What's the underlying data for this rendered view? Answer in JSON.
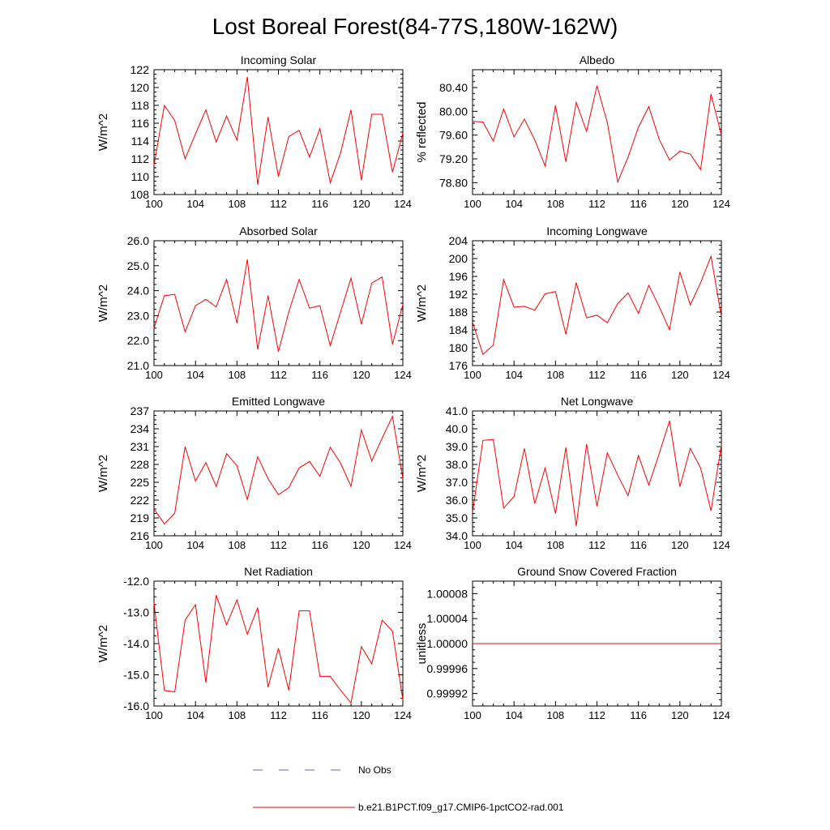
{
  "figure": {
    "title": "Lost Boreal Forest(84-77S,180W-162W)"
  },
  "legend": {
    "position": "bottom",
    "entries": [
      {
        "label": "No Obs",
        "color": "#6666cc",
        "style": "dashed"
      },
      {
        "label": "b.e21.B1PCT.f09_g17.CMIP6-1pctCO2-rad.001",
        "color": "#ff0000",
        "style": "solid"
      }
    ]
  },
  "chart_data": [
    {
      "type": "line",
      "title": "Incoming Solar",
      "ylabel": "W/m^2",
      "xlim": [
        100,
        124
      ],
      "ylim": [
        108,
        122
      ],
      "xticks": [
        "100",
        "104",
        "108",
        "112",
        "116",
        "120",
        "124"
      ],
      "yticks": [
        {
          "v": 108,
          "label": "108"
        },
        {
          "v": 110,
          "label": "110"
        },
        {
          "v": 112,
          "label": "112"
        },
        {
          "v": 114,
          "label": "114"
        },
        {
          "v": 116,
          "label": "116"
        },
        {
          "v": 118,
          "label": "118"
        },
        {
          "v": 120,
          "label": "120"
        },
        {
          "v": 122,
          "label": "122"
        }
      ],
      "series": [
        {
          "color": "#ff0000",
          "x": [
            100,
            101,
            102,
            103,
            104,
            105,
            106,
            107,
            108,
            109,
            110,
            111,
            112,
            113,
            114,
            115,
            116,
            117,
            118,
            119,
            120,
            121,
            122,
            123,
            124
          ],
          "values": [
            111.3,
            118.0,
            116.3,
            112.0,
            114.8,
            117.5,
            113.9,
            116.8,
            114.1,
            121.2,
            109.1,
            116.7,
            110.0,
            114.5,
            115.2,
            112.2,
            115.4,
            109.3,
            112.7,
            117.5,
            109.6,
            117.0,
            117.0,
            110.5,
            114.9
          ]
        }
      ]
    },
    {
      "type": "line",
      "title": "Albedo",
      "ylabel": "% reflected",
      "xlim": [
        100,
        124
      ],
      "ylim": [
        78.6,
        80.7
      ],
      "xticks": [
        "100",
        "104",
        "108",
        "112",
        "116",
        "120",
        "124"
      ],
      "yticks": [
        {
          "v": 78.8,
          "label": "78.80"
        },
        {
          "v": 79.2,
          "label": "79.20"
        },
        {
          "v": 79.6,
          "label": "79.60"
        },
        {
          "v": 80.0,
          "label": "80.00"
        },
        {
          "v": 80.4,
          "label": "80.40"
        }
      ],
      "series": [
        {
          "color": "#ff0000",
          "x": [
            100,
            101,
            102,
            103,
            104,
            105,
            106,
            107,
            108,
            109,
            110,
            111,
            112,
            113,
            114,
            115,
            116,
            117,
            118,
            119,
            120,
            121,
            122,
            123,
            124
          ],
          "values": [
            79.83,
            79.82,
            79.5,
            80.04,
            79.57,
            79.87,
            79.52,
            79.08,
            80.1,
            79.15,
            80.15,
            79.66,
            80.43,
            79.81,
            78.81,
            79.23,
            79.73,
            80.08,
            79.53,
            79.18,
            79.33,
            79.28,
            79.02,
            80.29,
            79.6
          ]
        }
      ]
    },
    {
      "type": "line",
      "title": "Absorbed Solar",
      "ylabel": "W/m^2",
      "xlim": [
        100,
        124
      ],
      "ylim": [
        21,
        26
      ],
      "xticks": [
        "100",
        "104",
        "108",
        "112",
        "116",
        "120",
        "124"
      ],
      "yticks": [
        {
          "v": 21,
          "label": "21.0"
        },
        {
          "v": 22,
          "label": "22.0"
        },
        {
          "v": 23,
          "label": "23.0"
        },
        {
          "v": 24,
          "label": "24.0"
        },
        {
          "v": 25,
          "label": "25.0"
        },
        {
          "v": 26,
          "label": "26.0"
        }
      ],
      "series": [
        {
          "color": "#ff0000",
          "x": [
            100,
            101,
            102,
            103,
            104,
            105,
            106,
            107,
            108,
            109,
            110,
            111,
            112,
            113,
            114,
            115,
            116,
            117,
            118,
            119,
            120,
            121,
            122,
            123,
            124
          ],
          "values": [
            22.5,
            23.8,
            23.85,
            22.35,
            23.4,
            23.65,
            23.35,
            24.45,
            22.7,
            25.25,
            21.65,
            23.8,
            21.55,
            23.15,
            24.45,
            23.3,
            23.4,
            21.8,
            23.15,
            24.5,
            22.65,
            24.3,
            24.55,
            21.85,
            23.45
          ]
        }
      ]
    },
    {
      "type": "line",
      "title": "Incoming Longwave",
      "ylabel": "W/m^2",
      "xlim": [
        100,
        124
      ],
      "ylim": [
        176,
        204
      ],
      "xticks": [
        "100",
        "104",
        "108",
        "112",
        "116",
        "120",
        "124"
      ],
      "yticks": [
        {
          "v": 176,
          "label": "176"
        },
        {
          "v": 180,
          "label": "180"
        },
        {
          "v": 184,
          "label": "184"
        },
        {
          "v": 188,
          "label": "188"
        },
        {
          "v": 192,
          "label": "192"
        },
        {
          "v": 196,
          "label": "196"
        },
        {
          "v": 200,
          "label": "200"
        },
        {
          "v": 204,
          "label": "204"
        }
      ],
      "series": [
        {
          "color": "#ff0000",
          "x": [
            100,
            101,
            102,
            103,
            104,
            105,
            106,
            107,
            108,
            109,
            110,
            111,
            112,
            113,
            114,
            115,
            116,
            117,
            118,
            119,
            120,
            121,
            122,
            123,
            124
          ],
          "values": [
            185.8,
            178.5,
            180.6,
            195.3,
            189.1,
            189.3,
            188.4,
            192.1,
            192.6,
            183.0,
            194.6,
            186.7,
            187.3,
            185.6,
            189.9,
            192.3,
            187.7,
            194.0,
            189.2,
            184.0,
            197.0,
            189.6,
            194.6,
            200.5,
            187.0
          ]
        }
      ]
    },
    {
      "type": "line",
      "title": "Emitted Longwave",
      "ylabel": "W/m^2",
      "xlim": [
        100,
        124
      ],
      "ylim": [
        216,
        237
      ],
      "xticks": [
        "100",
        "104",
        "108",
        "112",
        "116",
        "120",
        "124"
      ],
      "yticks": [
        {
          "v": 216,
          "label": "216"
        },
        {
          "v": 219,
          "label": "219"
        },
        {
          "v": 222,
          "label": "222"
        },
        {
          "v": 225,
          "label": "225"
        },
        {
          "v": 228,
          "label": "228"
        },
        {
          "v": 231,
          "label": "231"
        },
        {
          "v": 234,
          "label": "234"
        },
        {
          "v": 237,
          "label": "237"
        }
      ],
      "series": [
        {
          "color": "#ff0000",
          "x": [
            100,
            101,
            102,
            103,
            104,
            105,
            106,
            107,
            108,
            109,
            110,
            111,
            112,
            113,
            114,
            115,
            116,
            117,
            118,
            119,
            120,
            121,
            122,
            123,
            124
          ],
          "values": [
            220.5,
            218.0,
            219.8,
            231.0,
            225.2,
            228.3,
            224.3,
            229.8,
            227.8,
            222.1,
            229.3,
            225.6,
            222.9,
            224.1,
            227.4,
            228.5,
            226.0,
            230.9,
            228.2,
            224.3,
            233.8,
            228.6,
            232.4,
            236.1,
            225.6
          ]
        }
      ]
    },
    {
      "type": "line",
      "title": "Net Longwave",
      "ylabel": "W/m^2",
      "xlim": [
        100,
        124
      ],
      "ylim": [
        34,
        41
      ],
      "xticks": [
        "100",
        "104",
        "108",
        "112",
        "116",
        "120",
        "124"
      ],
      "yticks": [
        {
          "v": 34,
          "label": "34.0"
        },
        {
          "v": 35,
          "label": "35.0"
        },
        {
          "v": 36,
          "label": "36.0"
        },
        {
          "v": 37,
          "label": "37.0"
        },
        {
          "v": 38,
          "label": "38.0"
        },
        {
          "v": 39,
          "label": "39.0"
        },
        {
          "v": 40,
          "label": "40.0"
        },
        {
          "v": 41,
          "label": "41.0"
        }
      ],
      "series": [
        {
          "color": "#ff0000",
          "x": [
            100,
            101,
            102,
            103,
            104,
            105,
            106,
            107,
            108,
            109,
            110,
            111,
            112,
            113,
            114,
            115,
            116,
            117,
            118,
            119,
            120,
            121,
            122,
            123,
            124
          ],
          "values": [
            35.3,
            39.35,
            39.4,
            35.55,
            36.2,
            38.9,
            35.8,
            37.8,
            35.25,
            38.95,
            34.55,
            39.15,
            35.65,
            38.65,
            37.4,
            36.25,
            38.5,
            36.85,
            38.6,
            40.45,
            36.75,
            38.9,
            37.8,
            35.4,
            39.1
          ]
        }
      ]
    },
    {
      "type": "line",
      "title": "Net Radiation",
      "ylabel": "W/m^2",
      "xlim": [
        100,
        124
      ],
      "ylim": [
        -16,
        -12
      ],
      "xticks": [
        "100",
        "104",
        "108",
        "112",
        "116",
        "120",
        "124"
      ],
      "yticks": [
        {
          "v": -16,
          "label": "-16.0"
        },
        {
          "v": -15,
          "label": "-15.0"
        },
        {
          "v": -14,
          "label": "-14.0"
        },
        {
          "v": -13,
          "label": "-13.0"
        },
        {
          "v": -12,
          "label": "-12.0"
        }
      ],
      "series": [
        {
          "color": "#ff0000",
          "x": [
            100,
            101,
            102,
            103,
            104,
            105,
            106,
            107,
            108,
            109,
            110,
            111,
            112,
            113,
            114,
            115,
            116,
            117,
            118,
            119,
            120,
            121,
            122,
            123,
            124
          ],
          "values": [
            -12.7,
            -15.5,
            -15.55,
            -13.25,
            -12.75,
            -15.25,
            -12.45,
            -13.4,
            -12.6,
            -13.7,
            -12.85,
            -15.4,
            -14.15,
            -15.5,
            -12.95,
            -12.95,
            -15.05,
            -15.05,
            -15.5,
            -15.9,
            -14.1,
            -14.65,
            -13.25,
            -13.6,
            -15.8
          ]
        }
      ]
    },
    {
      "type": "line",
      "title": "Ground Snow Covered Fraction",
      "ylabel": "unitless",
      "xlim": [
        100,
        124
      ],
      "ylim": [
        0.9999,
        1.0001
      ],
      "xticks": [
        "100",
        "104",
        "108",
        "112",
        "116",
        "120",
        "124"
      ],
      "yticks": [
        {
          "v": 0.99992,
          "label": "0.99992"
        },
        {
          "v": 0.99996,
          "label": "0.99996"
        },
        {
          "v": 1.0,
          "label": "1.00000"
        },
        {
          "v": 1.00004,
          "label": "1.00004"
        },
        {
          "v": 1.00008,
          "label": "1.00008"
        }
      ],
      "series": [
        {
          "color": "#ff0000",
          "x": [
            100,
            101,
            102,
            103,
            104,
            105,
            106,
            107,
            108,
            109,
            110,
            111,
            112,
            113,
            114,
            115,
            116,
            117,
            118,
            119,
            120,
            121,
            122,
            123,
            124
          ],
          "values": [
            1,
            1,
            1,
            1,
            1,
            1,
            1,
            1,
            1,
            1,
            1,
            1,
            1,
            1,
            1,
            1,
            1,
            1,
            1,
            1,
            1,
            1,
            1,
            1,
            1
          ]
        }
      ]
    }
  ]
}
